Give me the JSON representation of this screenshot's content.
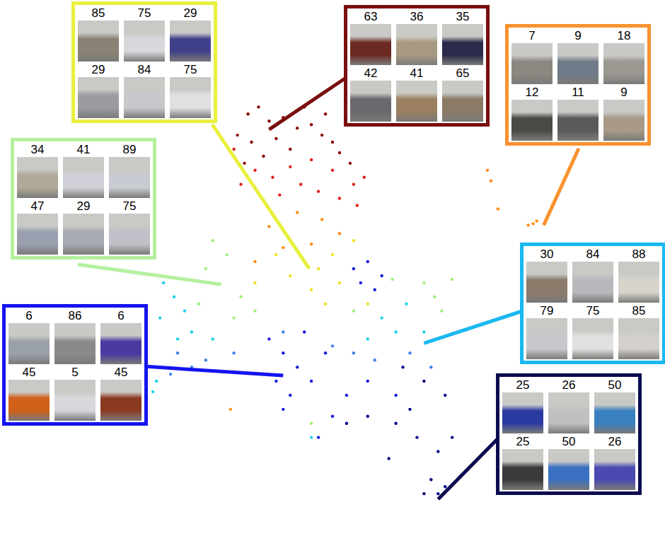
{
  "chart_data": {
    "type": "scatter",
    "tick_labels": false,
    "grid": false,
    "xlim": [
      0,
      940
    ],
    "ylim": [
      0,
      758
    ],
    "series": [
      {
        "color": "#8b0000",
        "x": [
          350,
          365,
          380,
          400,
          420,
          440,
          455,
          470,
          480,
          335,
          355,
          390,
          410,
          430,
          460,
          495,
          372,
          345
        ],
        "y": [
          598,
          608,
          588,
          593,
          578,
          583,
          568,
          558,
          543,
          568,
          558,
          563,
          548,
          608,
          598,
          528,
          538,
          528
        ]
      },
      {
        "color": "#e0201a",
        "x": [
          330,
          360,
          385,
          410,
          440,
          470,
          500,
          505,
          425,
          395,
          450,
          340,
          480,
          515
        ],
        "y": [
          548,
          518,
          508,
          523,
          533,
          518,
          498,
          468,
          498,
          483,
          488,
          498,
          478,
          508
        ]
      },
      {
        "color": "#ff8c1a",
        "x": [
          690,
          695,
          748,
          755,
          760,
          705,
          420,
          455,
          380,
          480,
          400,
          440,
          360,
          325
        ],
        "y": [
          518,
          503,
          440,
          442,
          446,
          463,
          458,
          448,
          438,
          428,
          408,
          413,
          388,
          178
        ]
      },
      {
        "color": "#f0e020",
        "x": [
          430,
          450,
          410,
          470,
          390,
          500,
          440,
          480,
          360,
          520,
          460
        ],
        "y": [
          388,
          378,
          368,
          398,
          398,
          418,
          348,
          358,
          358,
          328,
          328
        ]
      },
      {
        "color": "#9ef07a",
        "x": [
          300,
          320,
          290,
          310,
          340,
          280,
          330,
          360,
          600,
          615,
          625,
          640,
          500,
          440,
          555
        ],
        "y": [
          418,
          398,
          378,
          356,
          338,
          328,
          308,
          318,
          358,
          338,
          318,
          363,
          318,
          158,
          363
        ]
      },
      {
        "color": "#20d0e8",
        "x": [
          230,
          245,
          260,
          225,
          270,
          250,
          300,
          220,
          215,
          540,
          560,
          575,
          520,
          600,
          440
        ],
        "y": [
          358,
          338,
          318,
          308,
          288,
          278,
          278,
          218,
          203,
          308,
          288,
          328,
          278,
          288,
          138
        ]
      },
      {
        "color": "#4080f0",
        "x": [
          250,
          270,
          240,
          290,
          330,
          500,
          530,
          580,
          610,
          470,
          400
        ],
        "y": [
          258,
          238,
          228,
          248,
          258,
          258,
          248,
          258,
          238,
          268,
          288
        ]
      },
      {
        "color": "#1a1ae0",
        "x": [
          380,
          400,
          420,
          390,
          410,
          440,
          460,
          430,
          500,
          520,
          540,
          530,
          510,
          470,
          450,
          490,
          400,
          520,
          560
        ],
        "y": [
          278,
          258,
          238,
          218,
          198,
          218,
          258,
          288,
          378,
          388,
          368,
          348,
          358,
          168,
          138,
          198,
          178,
          218,
          198
        ]
      },
      {
        "color": "#00008b",
        "x": [
          570,
          600,
          630,
          560,
          590,
          620,
          610,
          620,
          630,
          600,
          640,
          550,
          580,
          520,
          490
        ],
        "y": [
          238,
          218,
          198,
          158,
          138,
          118,
          78,
          58,
          68,
          58,
          138,
          108,
          178,
          168,
          158
        ]
      }
    ],
    "annotations": [
      {
        "color": "#e8f040",
        "labels": [
          85,
          75,
          29,
          29,
          84,
          75
        ],
        "x": 437,
        "y": 378
      },
      {
        "color": "#7a0f0f",
        "labels": [
          63,
          36,
          35,
          42,
          41,
          65
        ],
        "x": 380,
        "y": 576
      },
      {
        "color": "#f7922f",
        "labels": [
          7,
          9,
          18,
          12,
          11,
          9
        ],
        "x": 770,
        "y": 440
      },
      {
        "color": "#b4f0a0",
        "labels": [
          34,
          41,
          89,
          47,
          29,
          75
        ],
        "x": 310,
        "y": 356
      },
      {
        "color": "#1ab8f0",
        "labels": [
          30,
          84,
          88,
          79,
          75,
          85
        ],
        "x": 600,
        "y": 272
      },
      {
        "color": "#1414f0",
        "labels": [
          6,
          86,
          6,
          45,
          5,
          45
        ],
        "x": 400,
        "y": 226
      },
      {
        "color": "#0c0c50",
        "labels": [
          25,
          26,
          50,
          25,
          50,
          26
        ],
        "x": 620,
        "y": 50
      }
    ]
  }
}
